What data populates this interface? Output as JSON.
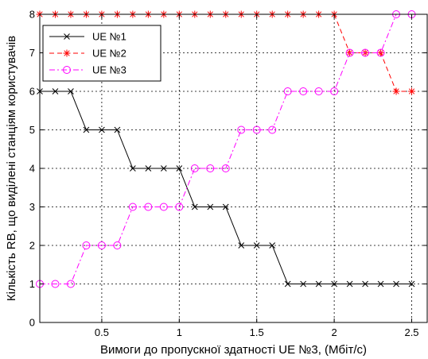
{
  "chart_data": {
    "type": "line",
    "title": "",
    "xlabel": "Вимоги до пропускної здатності UE №3, (Мбіт/с)",
    "ylabel": "Кількість RB, що виділені станціям користувачів",
    "xlim": [
      0.1,
      2.6
    ],
    "ylim": [
      0,
      8
    ],
    "xticks": [
      0.5,
      1,
      1.5,
      2,
      2.5
    ],
    "xtick_labels": [
      "0.5",
      "1",
      "1.5",
      "2",
      "2.5"
    ],
    "yticks": [
      0,
      1,
      2,
      3,
      4,
      5,
      6,
      7,
      8
    ],
    "ytick_labels": [
      "0",
      "1",
      "2",
      "3",
      "4",
      "5",
      "6",
      "7",
      "8"
    ],
    "grid": true,
    "legend_position": "top-left",
    "x": [
      0.1,
      0.2,
      0.3,
      0.4,
      0.5,
      0.6,
      0.7,
      0.8,
      0.9,
      1.0,
      1.1,
      1.2,
      1.3,
      1.4,
      1.5,
      1.6,
      1.7,
      1.8,
      1.9,
      2.0,
      2.1,
      2.2,
      2.3,
      2.4,
      2.5
    ],
    "series": [
      {
        "name": "UE №1",
        "color": "#000000",
        "marker": "x",
        "line": "solid",
        "values": [
          6,
          6,
          6,
          5,
          5,
          5,
          4,
          4,
          4,
          4,
          3,
          3,
          3,
          2,
          2,
          2,
          1,
          1,
          1,
          1,
          1,
          1,
          1,
          1,
          1
        ]
      },
      {
        "name": "UE №2",
        "color": "#ff0000",
        "marker": "star",
        "line": "dashed",
        "values": [
          8,
          8,
          8,
          8,
          8,
          8,
          8,
          8,
          8,
          8,
          8,
          8,
          8,
          8,
          8,
          8,
          8,
          8,
          8,
          8,
          7,
          7,
          7,
          6,
          6
        ]
      },
      {
        "name": "UE №3",
        "color": "#ff00ff",
        "marker": "circle",
        "line": "dashdot",
        "values": [
          1,
          1,
          1,
          2,
          2,
          2,
          3,
          3,
          3,
          3,
          4,
          4,
          4,
          5,
          5,
          5,
          6,
          6,
          6,
          6,
          7,
          7,
          7,
          8,
          8
        ]
      }
    ]
  }
}
